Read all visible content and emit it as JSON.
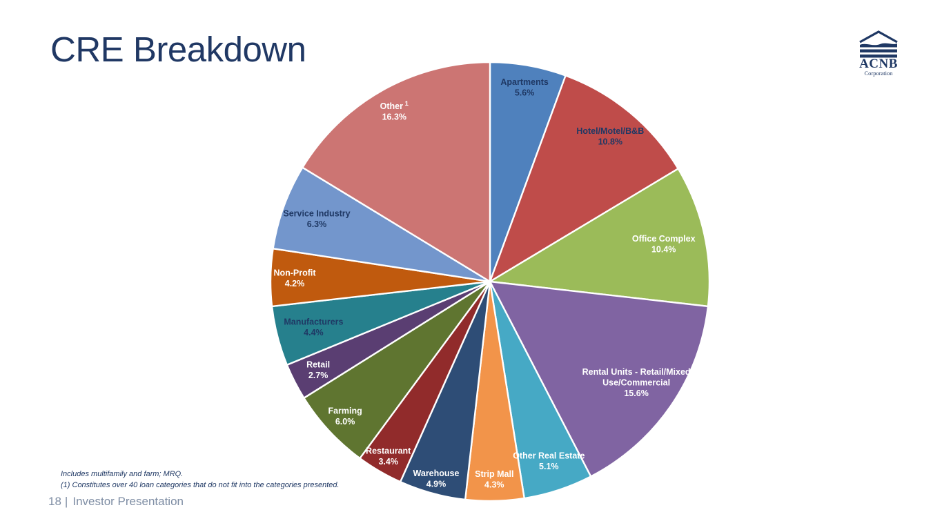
{
  "slide": {
    "title": "CRE Breakdown",
    "logo": {
      "name": "ACNB",
      "subtitle": "Corporation"
    },
    "footnotes": {
      "line1": "Includes multifamily and farm; MRQ.",
      "line2": "(1) Constitutes over 40 loan categories that do not fit into the categories presented."
    },
    "footer": {
      "page_number": "18",
      "separator": "|",
      "label": "Investor Presentation"
    },
    "colors": {
      "title_navy": "#203864",
      "label_navy": "#1F3864",
      "footer_gray": "#7D8CA3",
      "slice_border": "#FFFFFF"
    }
  },
  "chart_data": {
    "type": "pie",
    "title": "CRE Breakdown",
    "units": "percent",
    "layout": {
      "start_angle_deg": 0,
      "direction": "clockwise",
      "label_position": "inside",
      "legend": "none",
      "slice_border_color": "#FFFFFF"
    },
    "slices": [
      {
        "label": "Apartments",
        "value": 5.6,
        "pct_label": "5.6%",
        "color": "#4F81BD",
        "text_color": "#1F3864",
        "label_r": 0.9,
        "lines": [
          "Apartments",
          "5.6%"
        ]
      },
      {
        "label": "Hotel/Motel/B&B",
        "value": 10.8,
        "pct_label": "10.8%",
        "color": "#BF4C4A",
        "text_color": "#1F3864",
        "label_r": 0.86,
        "lines": [
          "Hotel/Motel/B&B",
          "10.8%"
        ]
      },
      {
        "label": "Office Complex",
        "value": 10.4,
        "pct_label": "10.4%",
        "color": "#9BBB59",
        "text_color": "#FFFFFF",
        "label_r": 0.81,
        "lines": [
          "Office Complex",
          "10.4%"
        ]
      },
      {
        "label": "Rental Units - Retail/Mixed Use/Commercial",
        "value": 15.6,
        "pct_label": "15.6%",
        "color": "#8064A2",
        "text_color": "#FFFFFF",
        "label_r": 0.81,
        "lines": [
          "Rental Units - Retail/Mixed",
          "Use/Commercial",
          "15.6%"
        ]
      },
      {
        "label": "Other Real Estate",
        "value": 5.1,
        "pct_label": "5.1%",
        "color": "#46A9C5",
        "text_color": "#FFFFFF",
        "label_r": 0.86,
        "lines": [
          "Other Real Estate",
          "5.1%"
        ]
      },
      {
        "label": "Strip Mall",
        "value": 4.3,
        "pct_label": "4.3%",
        "color": "#F2944A",
        "text_color": "#FFFFFF",
        "label_r": 0.9,
        "lines": [
          "Strip Mall",
          "4.3%"
        ]
      },
      {
        "label": "Warehouse",
        "value": 4.9,
        "pct_label": "4.9%",
        "color": "#2E4D76",
        "text_color": "#FFFFFF",
        "label_r": 0.93,
        "lines": [
          "Warehouse",
          "4.9%"
        ]
      },
      {
        "label": "Restaurant",
        "value": 3.4,
        "pct_label": "3.4%",
        "color": "#912B2B",
        "text_color": "#FFFFFF",
        "label_r": 0.92,
        "lines": [
          "Restaurant",
          "3.4%"
        ]
      },
      {
        "label": "Farming",
        "value": 6.0,
        "pct_label": "6.0%",
        "color": "#5F7530",
        "text_color": "#FFFFFF",
        "label_r": 0.9,
        "lines": [
          "Farming",
          "6.0%"
        ]
      },
      {
        "label": "Retail",
        "value": 2.7,
        "pct_label": "2.7%",
        "color": "#5A3E72",
        "text_color": "#FFFFFF",
        "label_r": 0.88,
        "lines": [
          "Retail",
          "2.7%"
        ]
      },
      {
        "label": "Manufacturers",
        "value": 4.4,
        "pct_label": "4.4%",
        "color": "#26808D",
        "text_color": "#1F3864",
        "label_r": 0.83,
        "lines": [
          "Manufacturers",
          "4.4%"
        ]
      },
      {
        "label": "Non-Profit",
        "value": 4.2,
        "pct_label": "4.2%",
        "color": "#C05A0E",
        "text_color": "#FFFFFF",
        "label_r": 0.89,
        "lines": [
          "Non-Profit",
          "4.2%"
        ]
      },
      {
        "label": "Service Industry",
        "value": 6.3,
        "pct_label": "6.3%",
        "color": "#7396CC",
        "text_color": "#1F3864",
        "label_r": 0.84,
        "lines": [
          "Service Industry",
          "6.3%"
        ]
      },
      {
        "label": "Other",
        "value": 16.3,
        "pct_label": "16.3%",
        "color": "#CC7573",
        "text_color": "#FFFFFF",
        "label_r": 0.89,
        "lines": [
          "Other",
          "16.3%"
        ],
        "footnote_sup": "1"
      }
    ]
  }
}
